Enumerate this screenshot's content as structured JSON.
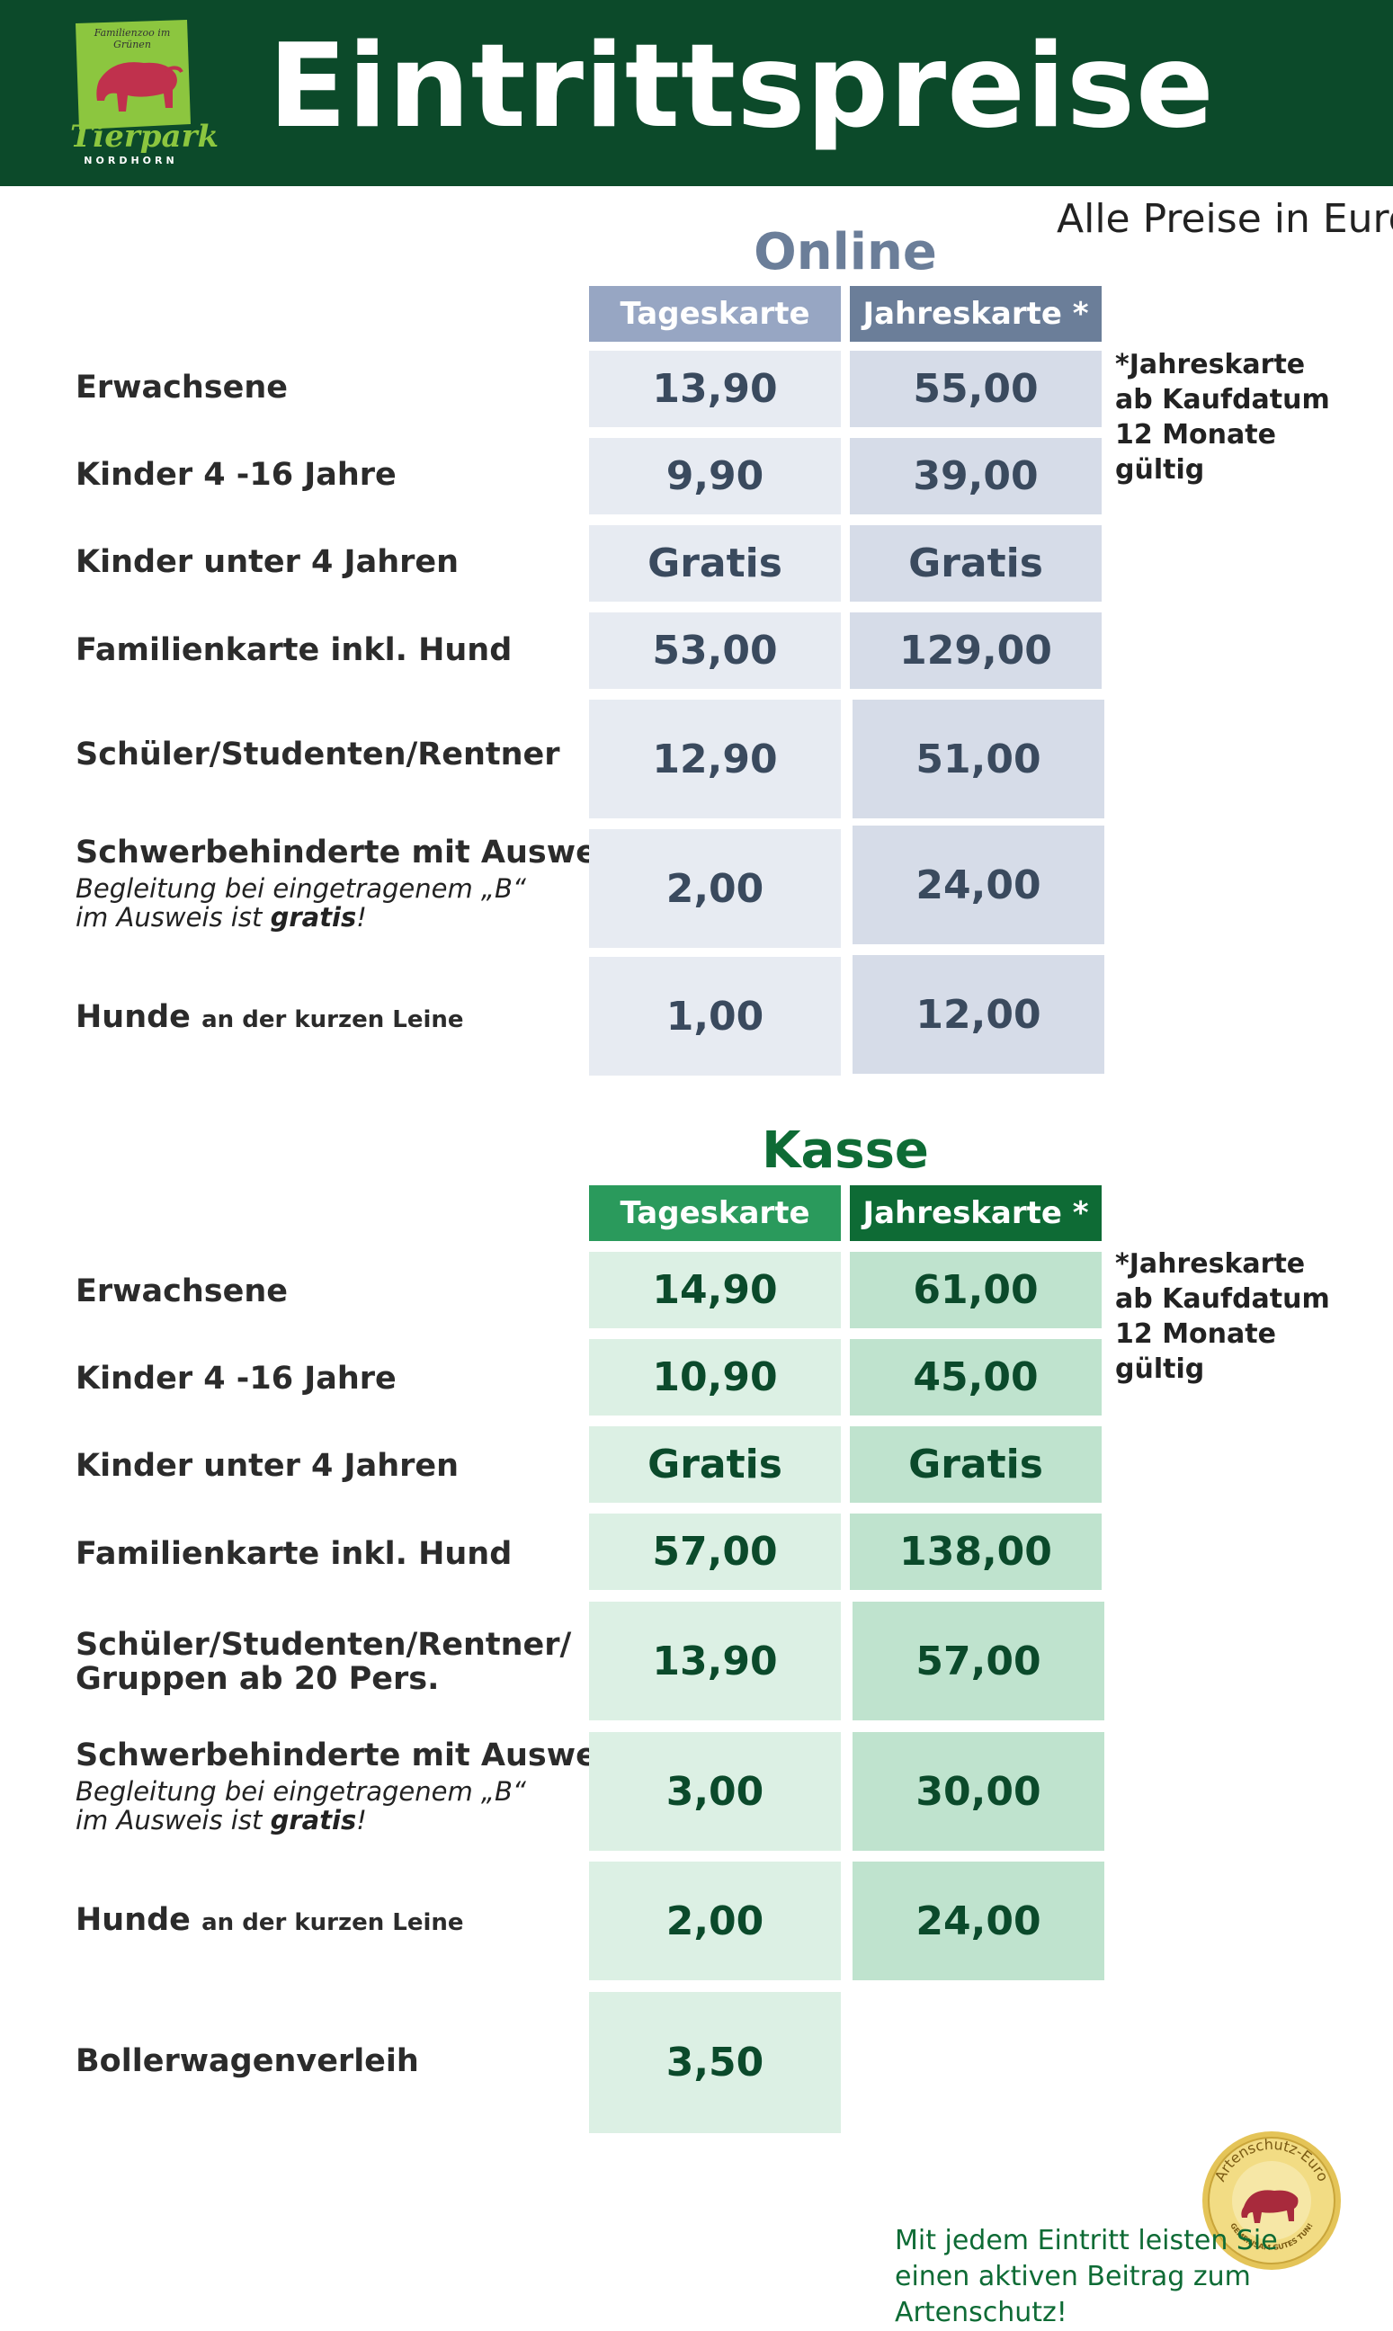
{
  "header": {
    "title": "Eintrittspreise",
    "logo": {
      "name": "Tierpark",
      "city": "NORDHORN",
      "subtitle": "Familienzoo im Grünen"
    }
  },
  "currency_note": "Alle Preise in Euro",
  "online": {
    "title": "Online",
    "columns": [
      "Tageskarte",
      "Jahreskarte *"
    ],
    "side_note": "*Jahreskarte\nab Kaufdatum\n12 Monate\ngültig",
    "rows": [
      {
        "label": "Erwachsene",
        "day": "13,90",
        "year": "55,00"
      },
      {
        "label": "Kinder 4 -16 Jahre",
        "day": "9,90",
        "year": "39,00"
      },
      {
        "label": "Kinder unter 4 Jahren",
        "day": "Gratis",
        "year": "Gratis"
      },
      {
        "label": "Familienkarte inkl. Hund",
        "day": "53,00",
        "year": "129,00"
      },
      {
        "label": "Schüler/Studenten/Rentner",
        "day": "12,90",
        "year": "51,00"
      },
      {
        "label": "Schwerbehinderte mit Ausweis",
        "note_pre": "Begleitung bei eingetragenem „B“\nim Ausweis ist ",
        "note_bold": "gratis",
        "note_post": "!",
        "day": "2,00",
        "year": "24,00"
      },
      {
        "label": "Hunde",
        "label_small": "an der kurzen Leine",
        "day": "1,00",
        "year": "12,00"
      }
    ]
  },
  "kasse": {
    "title": "Kasse",
    "columns": [
      "Tageskarte",
      "Jahreskarte *"
    ],
    "side_note": "*Jahreskarte\nab Kaufdatum\n12 Monate\ngültig",
    "rows": [
      {
        "label": "Erwachsene",
        "day": "14,90",
        "year": "61,00"
      },
      {
        "label": "Kinder 4 -16 Jahre",
        "day": "10,90",
        "year": "45,00"
      },
      {
        "label": "Kinder unter 4 Jahren",
        "day": "Gratis",
        "year": "Gratis"
      },
      {
        "label": "Familienkarte inkl. Hund",
        "day": "57,00",
        "year": "138,00"
      },
      {
        "label": "Schüler/Studenten/Rentner/",
        "label2": "Gruppen ab 20 Pers.",
        "day": "13,90",
        "year": "57,00"
      },
      {
        "label": "Schwerbehinderte mit Ausweis",
        "note_pre": "Begleitung bei eingetragenem „B“\nim Ausweis ist ",
        "note_bold": "gratis",
        "note_post": "!",
        "day": "3,00",
        "year": "30,00"
      },
      {
        "label": "Hunde",
        "label_small": "an der kurzen Leine",
        "day": "2,00",
        "year": "24,00"
      },
      {
        "label": "Bollerwagenverleih",
        "day": "3,50"
      }
    ]
  },
  "footer": {
    "text": "Mit jedem Eintritt leisten Sie\neinen aktiven Beitrag zum Artenschutz!",
    "badge": {
      "top": "Artenschutz-Euro",
      "bottom": "GEMEINSAM GUTES TUN!"
    }
  },
  "colors": {
    "header_bg": "#0c4a2a",
    "online_title": "#6b7e99",
    "online_head_day": "#97a6c3",
    "online_head_year": "#6b7e99",
    "kasse_title": "#0e6b35",
    "kasse_head_day": "#2a9a5c",
    "kasse_head_year": "#0e6b35"
  }
}
